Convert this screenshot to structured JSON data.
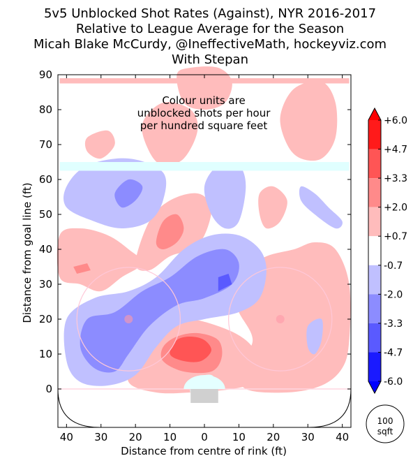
{
  "chart_data": {
    "type": "heatmap",
    "title_lines": [
      "5v5 Unblocked Shot Rates (Against), NYR 2016-2017",
      "Relative to League Average for the Season",
      "Micah Blake McCurdy, @IneffectiveMath, hockeyviz.com",
      "With Stepan"
    ],
    "xlabel": "Distance from centre of rink (ft)",
    "ylabel": "Distance from goal line (ft)",
    "xlim": [
      -42.5,
      42.5
    ],
    "ylim": [
      -11,
      90
    ],
    "x_ticks": [
      {
        "value": -40,
        "label": "40"
      },
      {
        "value": -30,
        "label": "30"
      },
      {
        "value": -20,
        "label": "20"
      },
      {
        "value": -10,
        "label": "10"
      },
      {
        "value": 0,
        "label": "0"
      },
      {
        "value": 10,
        "label": "10"
      },
      {
        "value": 20,
        "label": "20"
      },
      {
        "value": 30,
        "label": "30"
      },
      {
        "value": 40,
        "label": "40"
      }
    ],
    "y_ticks": [
      {
        "value": 0,
        "label": "0"
      },
      {
        "value": 10,
        "label": "10"
      },
      {
        "value": 20,
        "label": "20"
      },
      {
        "value": 30,
        "label": "30"
      },
      {
        "value": 40,
        "label": "40"
      },
      {
        "value": 50,
        "label": "50"
      },
      {
        "value": 60,
        "label": "60"
      },
      {
        "value": 70,
        "label": "70"
      },
      {
        "value": 80,
        "label": "80"
      },
      {
        "value": 90,
        "label": "90"
      }
    ],
    "annotation": [
      "Colour units are",
      "unblocked shots per hour",
      "per hundred square feet"
    ],
    "colorbar": {
      "levels": [
        "+6.0",
        "+4.7",
        "+3.3",
        "+2.0",
        "+0.7",
        "-0.7",
        "-2.0",
        "-3.3",
        "-4.7",
        "-6.0"
      ],
      "colors": [
        "#ff1a1a",
        "#ff5555",
        "#ff8a8a",
        "#ffbcbc",
        "#ffffff",
        "#c0c0ff",
        "#8c8cff",
        "#5a5aff",
        "#1a1aff"
      ],
      "max_color": "#ff0000",
      "min_color": "#0000ff"
    },
    "scale_circle_label": [
      "100",
      "sqft"
    ],
    "contours": [
      {
        "level": "+0.7",
        "color": "#ffbcbc",
        "points": [
          [
            -22,
            2
          ],
          [
            -14,
            -1
          ],
          [
            -4,
            -1
          ],
          [
            8,
            0
          ],
          [
            14,
            2
          ],
          [
            16,
            8
          ],
          [
            12,
            14
          ],
          [
            4,
            18
          ],
          [
            -6,
            20
          ],
          [
            -14,
            16
          ],
          [
            -20,
            10
          ]
        ]
      },
      {
        "level": "+2.0",
        "color": "#ff8a8a",
        "points": [
          [
            -12,
            8
          ],
          [
            -6,
            5
          ],
          [
            2,
            5
          ],
          [
            5,
            9
          ],
          [
            4,
            14
          ],
          [
            -2,
            16
          ],
          [
            -8,
            15
          ],
          [
            -12,
            12
          ]
        ]
      },
      {
        "level": "+3.3",
        "color": "#ff5555",
        "points": [
          [
            -10,
            10
          ],
          [
            -6,
            8
          ],
          [
            -1,
            8
          ],
          [
            2,
            11
          ],
          [
            0,
            14
          ],
          [
            -4,
            15
          ],
          [
            -8,
            14
          ]
        ]
      },
      {
        "level": "+0.7",
        "color": "#ffbcbc",
        "points": [
          [
            12,
            0
          ],
          [
            24,
            -1
          ],
          [
            34,
            1
          ],
          [
            40,
            6
          ],
          [
            42,
            14
          ],
          [
            42,
            30
          ],
          [
            38,
            40
          ],
          [
            32,
            42
          ],
          [
            26,
            40
          ],
          [
            18,
            38
          ],
          [
            12,
            34
          ],
          [
            8,
            28
          ],
          [
            10,
            22
          ],
          [
            14,
            14
          ],
          [
            10,
            6
          ]
        ]
      },
      {
        "level": "+0.7",
        "color": "#ffbcbc",
        "points": [
          [
            -42,
            44
          ],
          [
            -36,
            46
          ],
          [
            -28,
            44
          ],
          [
            -22,
            40
          ],
          [
            -18,
            36
          ],
          [
            -24,
            32
          ],
          [
            -30,
            28
          ],
          [
            -36,
            30
          ],
          [
            -42,
            32
          ]
        ]
      },
      {
        "level": "+2.0",
        "color": "#ff8a8a",
        "points": [
          [
            -38,
            35
          ],
          [
            -34,
            36
          ],
          [
            -33,
            34
          ],
          [
            -37,
            33
          ]
        ]
      },
      {
        "level": "+0.7",
        "color": "#ffbcbc",
        "points": [
          [
            -20,
            36
          ],
          [
            -16,
            48
          ],
          [
            -10,
            54
          ],
          [
            -2,
            56
          ],
          [
            2,
            52
          ],
          [
            0,
            44
          ],
          [
            -4,
            40
          ],
          [
            -10,
            38
          ],
          [
            -16,
            34
          ]
        ]
      },
      {
        "level": "+2.0",
        "color": "#ff8a8a",
        "points": [
          [
            -14,
            42
          ],
          [
            -12,
            48
          ],
          [
            -8,
            50
          ],
          [
            -6,
            46
          ],
          [
            -8,
            42
          ],
          [
            -12,
            40
          ]
        ]
      },
      {
        "level": "+0.7",
        "color": "#ffbcbc",
        "points": [
          [
            -18,
            76
          ],
          [
            -12,
            82
          ],
          [
            -4,
            80
          ],
          [
            -2,
            74
          ],
          [
            -6,
            66
          ],
          [
            -12,
            64
          ],
          [
            -16,
            68
          ]
        ]
      },
      {
        "level": "+0.7",
        "color": "#ffbcbc",
        "points": [
          [
            -34,
            72
          ],
          [
            -28,
            74
          ],
          [
            -26,
            70
          ],
          [
            -30,
            66
          ],
          [
            -34,
            68
          ]
        ]
      },
      {
        "level": "+0.7",
        "color": "#ffbcbc",
        "points": [
          [
            -8,
            90
          ],
          [
            -4,
            92
          ],
          [
            4,
            92
          ],
          [
            8,
            88
          ],
          [
            6,
            82
          ],
          [
            0,
            80
          ],
          [
            -6,
            82
          ]
        ]
      },
      {
        "level": "+0.7",
        "color": "#ffbcbc",
        "points": [
          [
            26,
            86
          ],
          [
            34,
            88
          ],
          [
            38,
            82
          ],
          [
            38,
            72
          ],
          [
            34,
            66
          ],
          [
            28,
            66
          ],
          [
            24,
            70
          ],
          [
            22,
            78
          ]
        ]
      },
      {
        "level": "+0.7",
        "color": "#ffbcbc",
        "points": [
          [
            16,
            56
          ],
          [
            20,
            58
          ],
          [
            24,
            54
          ],
          [
            22,
            48
          ],
          [
            18,
            46
          ],
          [
            16,
            50
          ]
        ]
      },
      {
        "level": "+0.7",
        "color": "#ffbcbc",
        "points": [
          [
            -42,
            89
          ],
          [
            42,
            89
          ],
          [
            42,
            87.5
          ],
          [
            -42,
            87.5
          ]
        ]
      },
      {
        "level": "-0.7",
        "color": "#c0c0ff",
        "points": [
          [
            -40,
            8
          ],
          [
            -36,
            2
          ],
          [
            -28,
            1
          ],
          [
            -20,
            4
          ],
          [
            -14,
            12
          ],
          [
            -8,
            18
          ],
          [
            0,
            20
          ],
          [
            10,
            22
          ],
          [
            16,
            26
          ],
          [
            18,
            34
          ],
          [
            16,
            40
          ],
          [
            10,
            44
          ],
          [
            2,
            44
          ],
          [
            -6,
            40
          ],
          [
            -14,
            32
          ],
          [
            -22,
            28
          ],
          [
            -32,
            26
          ],
          [
            -40,
            20
          ]
        ]
      },
      {
        "level": "-2.0",
        "color": "#8c8cff",
        "points": [
          [
            -36,
            12
          ],
          [
            -32,
            6
          ],
          [
            -26,
            5
          ],
          [
            -22,
            10
          ],
          [
            -16,
            18
          ],
          [
            -8,
            24
          ],
          [
            0,
            26
          ],
          [
            8,
            30
          ],
          [
            10,
            36
          ],
          [
            6,
            40
          ],
          [
            -2,
            38
          ],
          [
            -10,
            32
          ],
          [
            -18,
            28
          ],
          [
            -26,
            22
          ],
          [
            -34,
            20
          ]
        ]
      },
      {
        "level": "-3.3",
        "color": "#5a5aff",
        "points": [
          [
            4,
            28
          ],
          [
            8,
            30
          ],
          [
            7,
            33
          ],
          [
            4,
            32
          ]
        ]
      },
      {
        "level": "-0.7",
        "color": "#c0c0ff",
        "points": [
          [
            -40,
            58
          ],
          [
            -34,
            64
          ],
          [
            -22,
            66
          ],
          [
            -12,
            62
          ],
          [
            -12,
            54
          ],
          [
            -16,
            48
          ],
          [
            -24,
            46
          ],
          [
            -32,
            48
          ],
          [
            -40,
            52
          ]
        ]
      },
      {
        "level": "-2.0",
        "color": "#8c8cff",
        "points": [
          [
            -26,
            56
          ],
          [
            -22,
            60
          ],
          [
            -18,
            58
          ],
          [
            -20,
            54
          ],
          [
            -24,
            52
          ]
        ]
      },
      {
        "level": "-0.7",
        "color": "#c0c0ff",
        "points": [
          [
            0,
            58
          ],
          [
            4,
            64
          ],
          [
            10,
            64
          ],
          [
            12,
            58
          ],
          [
            10,
            48
          ],
          [
            6,
            46
          ],
          [
            2,
            50
          ]
        ]
      },
      {
        "level": "-0.7",
        "color": "#c0c0ff",
        "points": [
          [
            28,
            58
          ],
          [
            32,
            56
          ],
          [
            36,
            52
          ],
          [
            40,
            48
          ],
          [
            38,
            46
          ],
          [
            32,
            50
          ],
          [
            28,
            54
          ]
        ]
      },
      {
        "level": "-0.7",
        "color": "#c0c0ff",
        "points": [
          [
            30,
            18
          ],
          [
            34,
            20
          ],
          [
            34,
            14
          ],
          [
            32,
            10
          ],
          [
            30,
            12
          ]
        ]
      },
      {
        "level": "-0.7",
        "color": "#e0ffff",
        "points": [
          [
            -42,
            65
          ],
          [
            42,
            65
          ],
          [
            42,
            62.5
          ],
          [
            -42,
            62.5
          ]
        ]
      },
      {
        "level": "-0.7",
        "color": "#e0ffff",
        "points": [
          [
            -4,
            -1
          ],
          [
            -2,
            3
          ],
          [
            2,
            4
          ],
          [
            4,
            1
          ],
          [
            2,
            -2
          ]
        ]
      }
    ]
  }
}
